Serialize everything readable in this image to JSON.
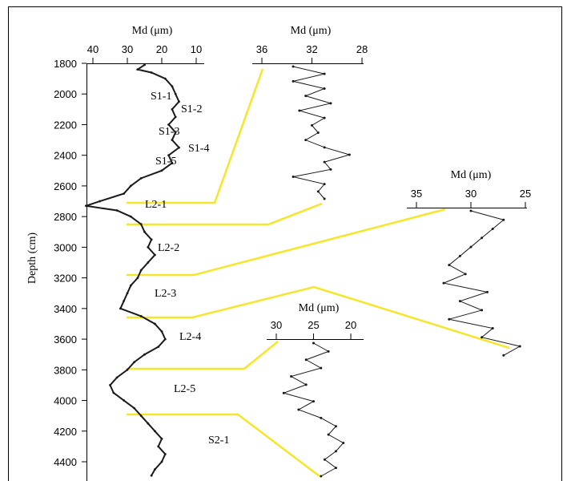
{
  "colors": {
    "series": "#1a1a1a",
    "connector": "#f5e62a",
    "frame": "#000000"
  },
  "chart_data": [
    {
      "type": "line",
      "panel": "main",
      "title": "",
      "xlabel": "Md (μm)",
      "ylabel": "Depth (cm)",
      "xlim": [
        40,
        10
      ],
      "ylim": [
        1800,
        4500
      ],
      "x_ticks": [
        40,
        30,
        20,
        10
      ],
      "y_ticks": [
        1800,
        2000,
        2200,
        2400,
        2600,
        2800,
        3000,
        3200,
        3400,
        3600,
        3800,
        4000,
        4200,
        4400
      ],
      "grid": false,
      "legend": "none",
      "series": [
        {
          "values": [
            {
              "depth": 1810,
              "md": 25
            },
            {
              "depth": 1840,
              "md": 27
            },
            {
              "depth": 1860,
              "md": 23
            },
            {
              "depth": 1900,
              "md": 19
            },
            {
              "depth": 1950,
              "md": 17
            },
            {
              "depth": 2000,
              "md": 16
            },
            {
              "depth": 2050,
              "md": 15
            },
            {
              "depth": 2100,
              "md": 17
            },
            {
              "depth": 2150,
              "md": 16
            },
            {
              "depth": 2200,
              "md": 18
            },
            {
              "depth": 2250,
              "md": 16
            },
            {
              "depth": 2300,
              "md": 17
            },
            {
              "depth": 2350,
              "md": 15
            },
            {
              "depth": 2400,
              "md": 18
            },
            {
              "depth": 2450,
              "md": 17
            },
            {
              "depth": 2500,
              "md": 20
            },
            {
              "depth": 2550,
              "md": 26
            },
            {
              "depth": 2600,
              "md": 29
            },
            {
              "depth": 2650,
              "md": 31
            },
            {
              "depth": 2700,
              "md": 38
            },
            {
              "depth": 2730,
              "md": 42
            },
            {
              "depth": 2760,
              "md": 33
            },
            {
              "depth": 2800,
              "md": 29
            },
            {
              "depth": 2850,
              "md": 26
            },
            {
              "depth": 2900,
              "md": 25
            },
            {
              "depth": 2950,
              "md": 23
            },
            {
              "depth": 3000,
              "md": 24
            },
            {
              "depth": 3050,
              "md": 22
            },
            {
              "depth": 3100,
              "md": 24
            },
            {
              "depth": 3150,
              "md": 26
            },
            {
              "depth": 3200,
              "md": 27
            },
            {
              "depth": 3250,
              "md": 29
            },
            {
              "depth": 3300,
              "md": 30
            },
            {
              "depth": 3350,
              "md": 31
            },
            {
              "depth": 3400,
              "md": 32
            },
            {
              "depth": 3450,
              "md": 26
            },
            {
              "depth": 3500,
              "md": 22
            },
            {
              "depth": 3550,
              "md": 20
            },
            {
              "depth": 3600,
              "md": 19
            },
            {
              "depth": 3650,
              "md": 21
            },
            {
              "depth": 3700,
              "md": 25
            },
            {
              "depth": 3750,
              "md": 28
            },
            {
              "depth": 3800,
              "md": 30
            },
            {
              "depth": 3850,
              "md": 33
            },
            {
              "depth": 3900,
              "md": 35
            },
            {
              "depth": 3950,
              "md": 34
            },
            {
              "depth": 4000,
              "md": 31
            },
            {
              "depth": 4050,
              "md": 28
            },
            {
              "depth": 4100,
              "md": 26
            },
            {
              "depth": 4150,
              "md": 24
            },
            {
              "depth": 4200,
              "md": 22
            },
            {
              "depth": 4250,
              "md": 20
            },
            {
              "depth": 4300,
              "md": 21
            },
            {
              "depth": 4350,
              "md": 19
            },
            {
              "depth": 4400,
              "md": 20
            },
            {
              "depth": 4450,
              "md": 22
            },
            {
              "depth": 4490,
              "md": 23
            }
          ]
        }
      ],
      "annotations": [
        "S1-1",
        "S1-2",
        "S1-3",
        "S1-4",
        "S1-5",
        "L2-1",
        "L2-2",
        "L2-3",
        "L2-4",
        "L2-5",
        "S2-1"
      ]
    },
    {
      "type": "line",
      "panel": "inset-1",
      "xlabel": "Md (μm)",
      "xlim": [
        36,
        28
      ],
      "x_ticks": [
        36,
        32,
        28
      ],
      "depth_range": [
        1800,
        2700
      ],
      "series": [
        {
          "values": [
            {
              "depth": 1800,
              "md": 33.5
            },
            {
              "depth": 1850,
              "md": 31
            },
            {
              "depth": 1900,
              "md": 33.5
            },
            {
              "depth": 1950,
              "md": 31
            },
            {
              "depth": 2000,
              "md": 32.5
            },
            {
              "depth": 2050,
              "md": 30.5
            },
            {
              "depth": 2100,
              "md": 33
            },
            {
              "depth": 2150,
              "md": 31
            },
            {
              "depth": 2200,
              "md": 32
            },
            {
              "depth": 2250,
              "md": 31.5
            },
            {
              "depth": 2300,
              "md": 32.5
            },
            {
              "depth": 2350,
              "md": 31
            },
            {
              "depth": 2400,
              "md": 29
            },
            {
              "depth": 2450,
              "md": 31
            },
            {
              "depth": 2500,
              "md": 30.5
            },
            {
              "depth": 2550,
              "md": 33.5
            },
            {
              "depth": 2600,
              "md": 31
            },
            {
              "depth": 2650,
              "md": 31.5
            },
            {
              "depth": 2700,
              "md": 31
            }
          ]
        }
      ]
    },
    {
      "type": "line",
      "panel": "inset-2",
      "xlabel": "Md (μm)",
      "xlim": [
        35,
        25
      ],
      "x_ticks": [
        35,
        30,
        25
      ],
      "depth_range": [
        2850,
        3600
      ],
      "series": [
        {
          "values": [
            {
              "depth": 2850,
              "md": 30
            },
            {
              "depth": 2900,
              "md": 27
            },
            {
              "depth": 2950,
              "md": 28
            },
            {
              "depth": 3000,
              "md": 29
            },
            {
              "depth": 3050,
              "md": 30
            },
            {
              "depth": 3100,
              "md": 31
            },
            {
              "depth": 3150,
              "md": 32
            },
            {
              "depth": 3200,
              "md": 30.5
            },
            {
              "depth": 3250,
              "md": 32.5
            },
            {
              "depth": 3300,
              "md": 28.5
            },
            {
              "depth": 3350,
              "md": 31
            },
            {
              "depth": 3400,
              "md": 29
            },
            {
              "depth": 3450,
              "md": 32
            },
            {
              "depth": 3500,
              "md": 28
            },
            {
              "depth": 3550,
              "md": 29
            },
            {
              "depth": 3600,
              "md": 25.5
            },
            {
              "depth": 3650,
              "md": 27
            }
          ]
        }
      ]
    },
    {
      "type": "line",
      "panel": "inset-3",
      "xlabel": "Md (μm)",
      "xlim": [
        30,
        18.5
      ],
      "x_ticks": [
        30,
        25,
        20
      ],
      "depth_range": [
        3700,
        4500
      ],
      "series": [
        {
          "values": [
            {
              "depth": 3700,
              "md": 25
            },
            {
              "depth": 3750,
              "md": 23
            },
            {
              "depth": 3800,
              "md": 26
            },
            {
              "depth": 3850,
              "md": 24
            },
            {
              "depth": 3900,
              "md": 28
            },
            {
              "depth": 3950,
              "md": 26
            },
            {
              "depth": 4000,
              "md": 29
            },
            {
              "depth": 4050,
              "md": 25
            },
            {
              "depth": 4100,
              "md": 27
            },
            {
              "depth": 4150,
              "md": 24
            },
            {
              "depth": 4200,
              "md": 22
            },
            {
              "depth": 4250,
              "md": 23
            },
            {
              "depth": 4300,
              "md": 21
            },
            {
              "depth": 4350,
              "md": 22
            },
            {
              "depth": 4400,
              "md": 23.5
            },
            {
              "depth": 4450,
              "md": 22
            },
            {
              "depth": 4500,
              "md": 24
            }
          ]
        }
      ]
    }
  ]
}
